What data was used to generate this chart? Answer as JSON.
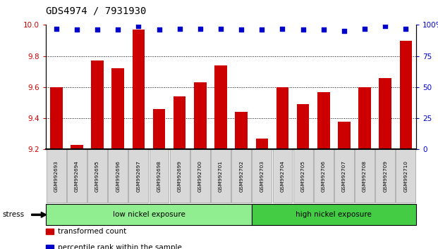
{
  "title": "GDS4974 / 7931930",
  "samples": [
    "GSM992693",
    "GSM992694",
    "GSM992695",
    "GSM992696",
    "GSM992697",
    "GSM992698",
    "GSM992699",
    "GSM992700",
    "GSM992701",
    "GSM992702",
    "GSM992703",
    "GSM992704",
    "GSM992705",
    "GSM992706",
    "GSM992707",
    "GSM992708",
    "GSM992709",
    "GSM992710"
  ],
  "bar_values": [
    9.6,
    9.23,
    9.77,
    9.72,
    9.97,
    9.46,
    9.54,
    9.63,
    9.74,
    9.44,
    9.27,
    9.6,
    9.49,
    9.57,
    9.38,
    9.6,
    9.66,
    9.9
  ],
  "percentile_values": [
    97,
    96,
    96,
    96,
    99,
    96,
    97,
    97,
    97,
    96,
    96,
    97,
    96,
    96,
    95,
    97,
    99,
    97
  ],
  "bar_color": "#cc0000",
  "percentile_color": "#0000cc",
  "ylim_left": [
    9.2,
    10.0
  ],
  "ylim_right": [
    0,
    100
  ],
  "yticks_left": [
    9.2,
    9.4,
    9.6,
    9.8,
    10.0
  ],
  "yticks_right": [
    0,
    25,
    50,
    75,
    100
  ],
  "ytick_labels_right": [
    "0",
    "25",
    "50",
    "75",
    "100%"
  ],
  "group1_label": "low nickel exposure",
  "group2_label": "high nickel exposure",
  "group1_count": 10,
  "group2_count": 8,
  "stress_label": "stress",
  "legend_bar_label": "transformed count",
  "legend_pct_label": "percentile rank within the sample",
  "bg_color": "#ffffff",
  "plot_bg_color": "#ffffff",
  "xticklabel_bg": "#d8d8d8",
  "group1_color": "#90ee90",
  "group2_color": "#44cc44",
  "title_fontsize": 10,
  "tick_fontsize": 7.5,
  "bar_width": 0.6
}
